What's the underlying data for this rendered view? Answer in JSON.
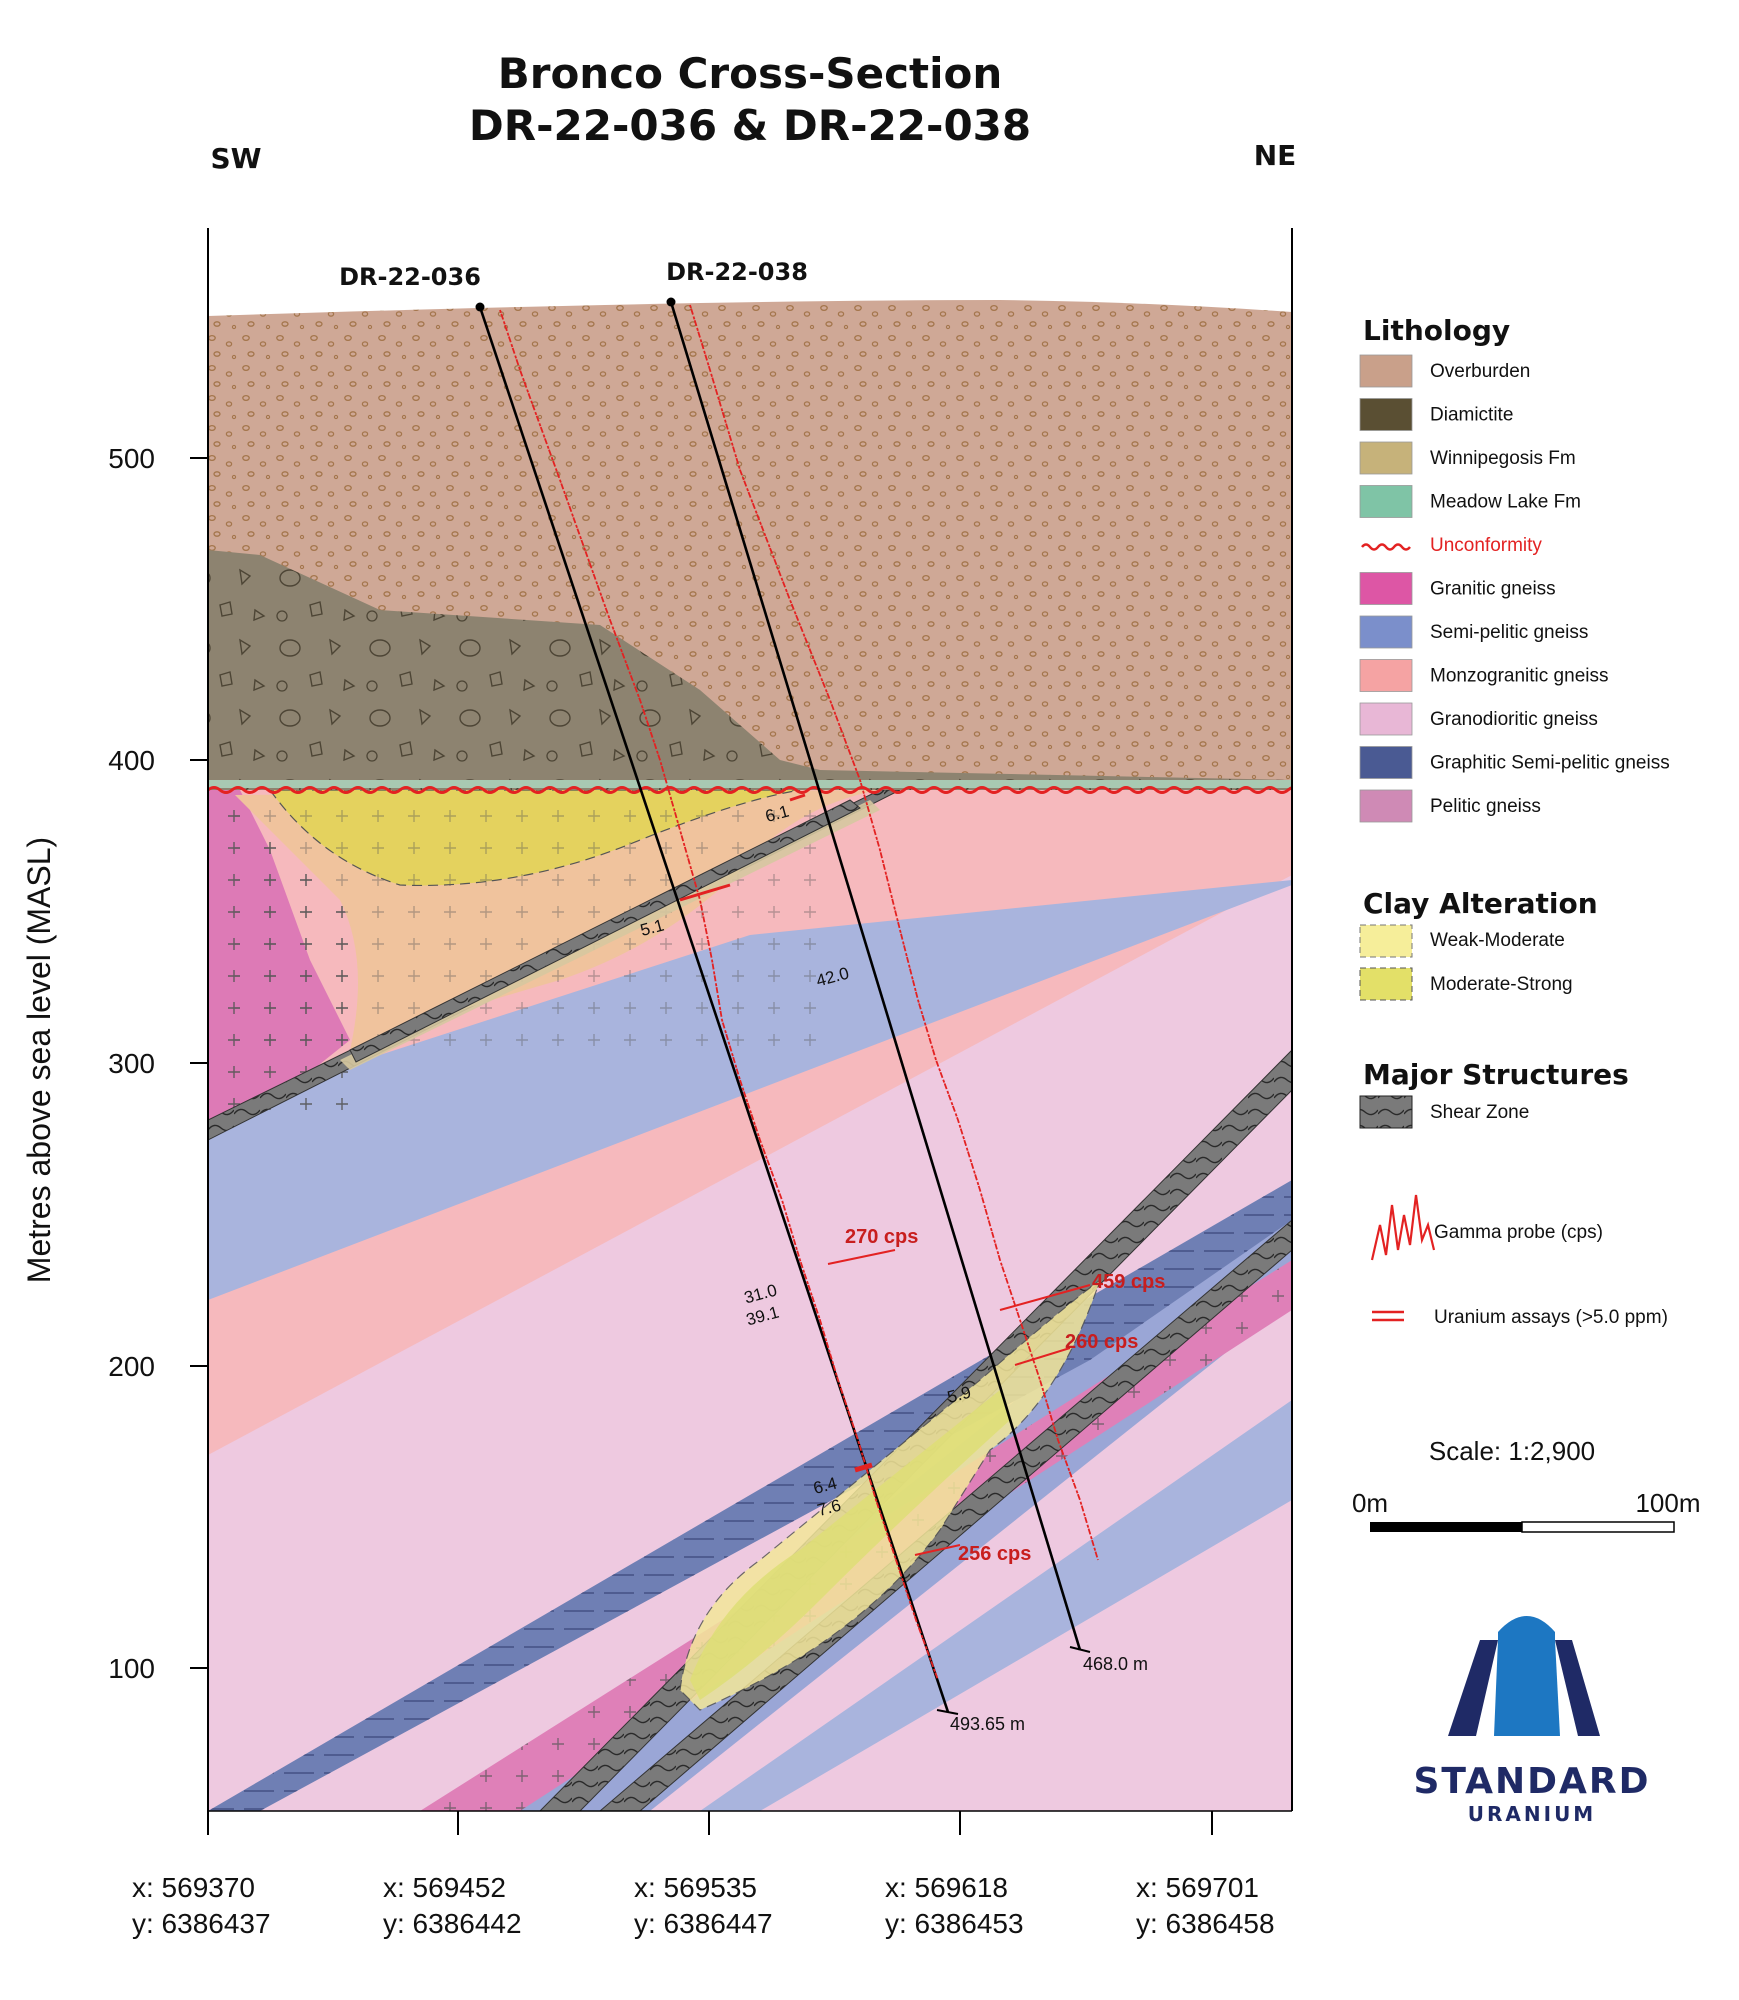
{
  "title": {
    "line1": "Bronco Cross-Section",
    "line2": "DR-22-036 & DR-22-038"
  },
  "directions": {
    "left": "SW",
    "right": "NE"
  },
  "y_axis": {
    "label": "Metres above sea level (MASL)",
    "ticks": [
      "500",
      "400",
      "300",
      "200",
      "100"
    ]
  },
  "x_axis": {
    "ticks": [
      {
        "x": "x: 569370",
        "y": "y: 6386437"
      },
      {
        "x": "x: 569452",
        "y": "y: 6386442"
      },
      {
        "x": "x: 569535",
        "y": "y: 6386447"
      },
      {
        "x": "x: 569618",
        "y": "y: 6386453"
      },
      {
        "x": "x: 569701",
        "y": "y: 6386458"
      }
    ]
  },
  "drillholes": [
    {
      "name": "DR-22-036",
      "depth_label": "493.65 m"
    },
    {
      "name": "DR-22-038",
      "depth_label": "468.0 m"
    }
  ],
  "assays": [
    "6.1",
    "5.1",
    "42.0",
    "31.0",
    "39.1",
    "5.9",
    "6.4",
    "7.6"
  ],
  "gamma_peaks": [
    "270 cps",
    "459 cps",
    "260 cps",
    "256 cps"
  ],
  "legend": {
    "lithology_title": "Lithology",
    "lithology": [
      {
        "label": "Overburden",
        "color": "#c9a08a"
      },
      {
        "label": "Diamictite",
        "color": "#5a4f33"
      },
      {
        "label": "Winnipegosis Fm",
        "color": "#c6b27a"
      },
      {
        "label": "Meadow Lake Fm",
        "color": "#7fc4a6"
      },
      {
        "label": "Unconformity",
        "color": "#e32222"
      },
      {
        "label": "Granitic gneiss",
        "color": "#dd56a5"
      },
      {
        "label": "Semi-pelitic gneiss",
        "color": "#7b8fcb"
      },
      {
        "label": "Monzogranitic gneiss",
        "color": "#f5a3a3"
      },
      {
        "label": "Granodioritic gneiss",
        "color": "#e8b7d6"
      },
      {
        "label": "Graphitic Semi-pelitic gneiss",
        "color": "#4a5a93"
      },
      {
        "label": "Pelitic gneiss",
        "color": "#cf8ab5"
      }
    ],
    "clay_title": "Clay Alteration",
    "clay": [
      {
        "label": "Weak-Moderate",
        "color": "#f6ee9a"
      },
      {
        "label": "Moderate-Strong",
        "color": "#e3e068"
      }
    ],
    "structures_title": "Major Structures",
    "structures": [
      {
        "label": "Shear Zone",
        "color": "#6b6b6b"
      }
    ],
    "gamma_label": "Gamma probe (cps)",
    "assay_label": "Uranium assays (>5.0 ppm)"
  },
  "scale": {
    "text": "Scale: 1:2,900",
    "left": "0m",
    "right": "100m"
  },
  "logo": {
    "line1": "STANDARD",
    "line2": "URANIUM"
  }
}
